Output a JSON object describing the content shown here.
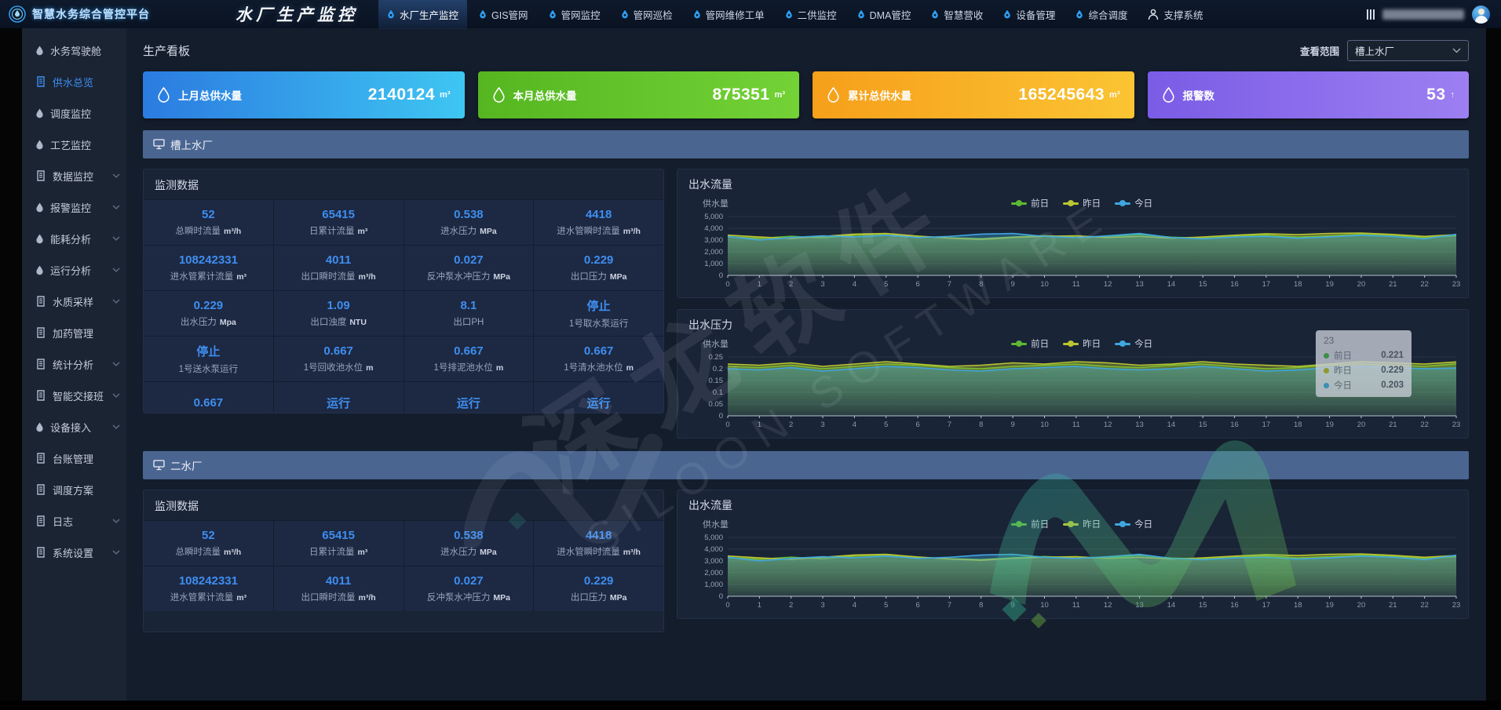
{
  "topbar": {
    "platform_title": "智慧水务综合管控平台",
    "page_title": "水厂生产监控",
    "nav_items": [
      {
        "label": "水厂生产监控",
        "icon": "drop",
        "active": true
      },
      {
        "label": "GIS管网",
        "icon": "drop",
        "active": false
      },
      {
        "label": "管网监控",
        "icon": "drop",
        "active": false
      },
      {
        "label": "管网巡检",
        "icon": "drop",
        "active": false
      },
      {
        "label": "管网维修工单",
        "icon": "drop",
        "active": false
      },
      {
        "label": "二供监控",
        "icon": "drop",
        "active": false
      },
      {
        "label": "DMA管控",
        "icon": "drop",
        "active": false
      },
      {
        "label": "智慧营收",
        "icon": "drop",
        "active": false
      },
      {
        "label": "设备管理",
        "icon": "drop",
        "active": false
      },
      {
        "label": "综合调度",
        "icon": "drop",
        "active": false
      },
      {
        "label": "支撑系统",
        "icon": "person",
        "active": false
      }
    ]
  },
  "sidebar": {
    "items": [
      {
        "label": "水务驾驶舱",
        "icon": "drop",
        "expandable": false,
        "active": false
      },
      {
        "label": "供水总览",
        "icon": "doc",
        "expandable": false,
        "active": true
      },
      {
        "label": "调度监控",
        "icon": "drop",
        "expandable": false,
        "active": false
      },
      {
        "label": "工艺监控",
        "icon": "drop",
        "expandable": false,
        "active": false
      },
      {
        "label": "数据监控",
        "icon": "doc",
        "expandable": true,
        "active": false
      },
      {
        "label": "报警监控",
        "icon": "drop",
        "expandable": true,
        "active": false
      },
      {
        "label": "能耗分析",
        "icon": "drop",
        "expandable": true,
        "active": false
      },
      {
        "label": "运行分析",
        "icon": "drop",
        "expandable": true,
        "active": false
      },
      {
        "label": "水质采样",
        "icon": "doc",
        "expandable": true,
        "active": false
      },
      {
        "label": "加药管理",
        "icon": "doc",
        "expandable": false,
        "active": false
      },
      {
        "label": "统计分析",
        "icon": "doc",
        "expandable": true,
        "active": false
      },
      {
        "label": "智能交接班",
        "icon": "doc",
        "expandable": true,
        "active": false
      },
      {
        "label": "设备接入",
        "icon": "drop",
        "expandable": true,
        "active": false
      },
      {
        "label": "台账管理",
        "icon": "doc",
        "expandable": false,
        "active": false
      },
      {
        "label": "调度方案",
        "icon": "doc",
        "expandable": false,
        "active": false
      },
      {
        "label": "日志",
        "icon": "doc",
        "expandable": true,
        "active": false
      },
      {
        "label": "系统设置",
        "icon": "doc",
        "expandable": true,
        "active": false
      }
    ]
  },
  "board": {
    "title": "生产看板",
    "scope_label": "查看范围",
    "scope_value": "槽上水厂"
  },
  "kpi_cards": [
    {
      "label": "上月总供水量",
      "value": "2140124",
      "unit": "m³",
      "color_from": "#2b7be0",
      "color_to": "#3ec6f2"
    },
    {
      "label": "本月总供水量",
      "value": "875351",
      "unit": "m³",
      "color_from": "#55b621",
      "color_to": "#72d236"
    },
    {
      "label": "累计总供水量",
      "value": "165245643",
      "unit": "m³",
      "color_from": "#f69f1b",
      "color_to": "#fbc433"
    },
    {
      "label": "报警数",
      "value": "53",
      "unit": "↑",
      "color_from": "#7a5ce6",
      "color_to": "#9d7ff2"
    }
  ],
  "sections": [
    {
      "title": "槽上水厂",
      "panel_title": "监测数据",
      "chart_refs": [
        0,
        1
      ],
      "metrics": [
        {
          "value": "52",
          "label": "总瞬时流量",
          "unit": "m³/h"
        },
        {
          "value": "65415",
          "label": "日累计流量",
          "unit": "m³"
        },
        {
          "value": "0.538",
          "label": "进水压力",
          "unit": "MPa"
        },
        {
          "value": "4418",
          "label": "进水管瞬时流量",
          "unit": "m³/h"
        },
        {
          "value": "108242331",
          "label": "进水管累计流量",
          "unit": "m³"
        },
        {
          "value": "4011",
          "label": "出口瞬时流量",
          "unit": "m³/h"
        },
        {
          "value": "0.027",
          "label": "反冲泵水冲压力",
          "unit": "MPa"
        },
        {
          "value": "0.229",
          "label": "出口压力",
          "unit": "MPa"
        },
        {
          "value": "0.229",
          "label": "出水压力",
          "unit": "Mpa"
        },
        {
          "value": "1.09",
          "label": "出口浊度",
          "unit": "NTU"
        },
        {
          "value": "8.1",
          "label": "出口PH",
          "unit": ""
        },
        {
          "value": "停止",
          "label": "1号取水泵运行",
          "unit": ""
        },
        {
          "value": "停止",
          "label": "1号送水泵运行",
          "unit": ""
        },
        {
          "value": "0.667",
          "label": "1号回收池水位",
          "unit": "m"
        },
        {
          "value": "0.667",
          "label": "1号排泥池水位",
          "unit": "m"
        },
        {
          "value": "0.667",
          "label": "1号清水池水位",
          "unit": "m"
        },
        {
          "value": "0.667",
          "label": "",
          "unit": ""
        },
        {
          "value": "运行",
          "label": "",
          "unit": ""
        },
        {
          "value": "运行",
          "label": "",
          "unit": ""
        },
        {
          "value": "运行",
          "label": "",
          "unit": ""
        }
      ]
    },
    {
      "title": "二水厂",
      "panel_title": "监测数据",
      "chart_refs": [
        2
      ],
      "metrics": [
        {
          "value": "52",
          "label": "总瞬时流量",
          "unit": "m³/h"
        },
        {
          "value": "65415",
          "label": "日累计流量",
          "unit": "m³"
        },
        {
          "value": "0.538",
          "label": "进水压力",
          "unit": "MPa"
        },
        {
          "value": "4418",
          "label": "进水管瞬时流量",
          "unit": "m³/h"
        },
        {
          "value": "108242331",
          "label": "进水管累计流量",
          "unit": "m³"
        },
        {
          "value": "4011",
          "label": "出口瞬时流量",
          "unit": "m³/h"
        },
        {
          "value": "0.027",
          "label": "反冲泵水冲压力",
          "unit": "MPa"
        },
        {
          "value": "0.229",
          "label": "出口压力",
          "unit": "MPa"
        }
      ]
    }
  ],
  "chart_data": [
    {
      "type": "area",
      "title": "出水流量",
      "ylabel": "供水量",
      "ylim": [
        0,
        5000
      ],
      "yticks": [
        0,
        1000,
        2000,
        3000,
        4000,
        5000
      ],
      "ytick_labels": [
        "0",
        "1,000",
        "2,000",
        "3,000",
        "4,000",
        "5,000"
      ],
      "x": [
        0,
        1,
        2,
        3,
        4,
        5,
        6,
        7,
        8,
        9,
        10,
        11,
        12,
        13,
        14,
        15,
        16,
        17,
        18,
        19,
        20,
        21,
        22,
        23
      ],
      "grid": true,
      "legend_position": "top",
      "series": [
        {
          "name": "前日",
          "color": "#5fb832",
          "values": [
            3280,
            3150,
            3320,
            3180,
            3420,
            3520,
            3310,
            3190,
            3120,
            3260,
            3380,
            3220,
            3300,
            3460,
            3250,
            3160,
            3310,
            3420,
            3260,
            3360,
            3500,
            3380,
            3210,
            3360
          ]
        },
        {
          "name": "昨日",
          "color": "#b9c531",
          "values": [
            3420,
            3260,
            3140,
            3310,
            3510,
            3560,
            3340,
            3160,
            3060,
            3220,
            3320,
            3360,
            3210,
            3310,
            3160,
            3260,
            3410,
            3540,
            3460,
            3560,
            3600,
            3480,
            3310,
            3460
          ]
        },
        {
          "name": "今日",
          "color": "#3fa6e0",
          "values": [
            3310,
            3010,
            3210,
            3360,
            3260,
            3410,
            3210,
            3310,
            3510,
            3560,
            3310,
            3210,
            3360,
            3560,
            3210,
            3110,
            3260,
            3310,
            3160,
            3260,
            3410,
            3310,
            3110,
            3490
          ]
        }
      ]
    },
    {
      "type": "area",
      "title": "出水压力",
      "ylabel": "供水量",
      "ylim": [
        0,
        0.25
      ],
      "yticks": [
        0,
        0.05,
        0.1,
        0.15,
        0.2,
        0.25
      ],
      "ytick_labels": [
        "0",
        "0.05",
        "0.1",
        "0.15",
        "0.2",
        "0.25"
      ],
      "x": [
        0,
        1,
        2,
        3,
        4,
        5,
        6,
        7,
        8,
        9,
        10,
        11,
        12,
        13,
        14,
        15,
        16,
        17,
        18,
        19,
        20,
        21,
        22,
        23
      ],
      "grid": true,
      "legend_position": "top",
      "series": [
        {
          "name": "前日",
          "color": "#5fb832",
          "values": [
            0.21,
            0.205,
            0.215,
            0.2,
            0.21,
            0.22,
            0.215,
            0.205,
            0.2,
            0.21,
            0.215,
            0.22,
            0.21,
            0.205,
            0.215,
            0.22,
            0.21,
            0.2,
            0.205,
            0.215,
            0.22,
            0.215,
            0.21,
            0.221
          ]
        },
        {
          "name": "昨日",
          "color": "#b9c531",
          "values": [
            0.22,
            0.215,
            0.225,
            0.21,
            0.22,
            0.23,
            0.22,
            0.21,
            0.215,
            0.225,
            0.22,
            0.23,
            0.225,
            0.215,
            0.22,
            0.23,
            0.22,
            0.215,
            0.21,
            0.22,
            0.23,
            0.225,
            0.22,
            0.229
          ]
        },
        {
          "name": "今日",
          "color": "#3fa6e0",
          "values": [
            0.2,
            0.195,
            0.205,
            0.19,
            0.2,
            0.21,
            0.205,
            0.195,
            0.19,
            0.2,
            0.205,
            0.21,
            0.2,
            0.195,
            0.2,
            0.21,
            0.2,
            0.19,
            0.195,
            0.205,
            0.21,
            0.205,
            0.2,
            0.203
          ]
        }
      ],
      "tooltip": {
        "header": "23",
        "rows": [
          {
            "name": "前日",
            "value": "0.221",
            "color": "#3f8e47"
          },
          {
            "name": "昨日",
            "value": "0.229",
            "color": "#8f9a2c"
          },
          {
            "name": "今日",
            "value": "0.203",
            "color": "#3a8fb5"
          }
        ]
      }
    },
    {
      "type": "area",
      "title": "出水流量",
      "ylabel": "供水量",
      "ylim": [
        0,
        5000
      ],
      "yticks": [
        0,
        1000,
        2000,
        3000,
        4000,
        5000
      ],
      "ytick_labels": [
        "0",
        "1,000",
        "2,000",
        "3,000",
        "4,000",
        "5,000"
      ],
      "x": [
        0,
        1,
        2,
        3,
        4,
        5,
        6,
        7,
        8,
        9,
        10,
        11,
        12,
        13,
        14,
        15,
        16,
        17,
        18,
        19,
        20,
        21,
        22,
        23
      ],
      "grid": true,
      "legend_position": "top",
      "series": [
        {
          "name": "前日",
          "color": "#5fb832",
          "values": [
            3280,
            3150,
            3320,
            3180,
            3420,
            3520,
            3310,
            3190,
            3120,
            3260,
            3380,
            3220,
            3300,
            3460,
            3250,
            3160,
            3310,
            3420,
            3260,
            3360,
            3500,
            3380,
            3210,
            3360
          ]
        },
        {
          "name": "昨日",
          "color": "#b9c531",
          "values": [
            3420,
            3260,
            3140,
            3310,
            3510,
            3560,
            3340,
            3160,
            3060,
            3220,
            3320,
            3360,
            3210,
            3310,
            3160,
            3260,
            3410,
            3540,
            3460,
            3560,
            3600,
            3480,
            3310,
            3460
          ]
        },
        {
          "name": "今日",
          "color": "#3fa6e0",
          "values": [
            3310,
            3010,
            3210,
            3360,
            3260,
            3410,
            3210,
            3310,
            3510,
            3560,
            3310,
            3210,
            3360,
            3560,
            3210,
            3110,
            3260,
            3310,
            3160,
            3260,
            3410,
            3310,
            3110,
            3490
          ]
        }
      ]
    }
  ],
  "watermark": {
    "cn": "深龙软件",
    "en": "SILOON SOFTWARE"
  }
}
